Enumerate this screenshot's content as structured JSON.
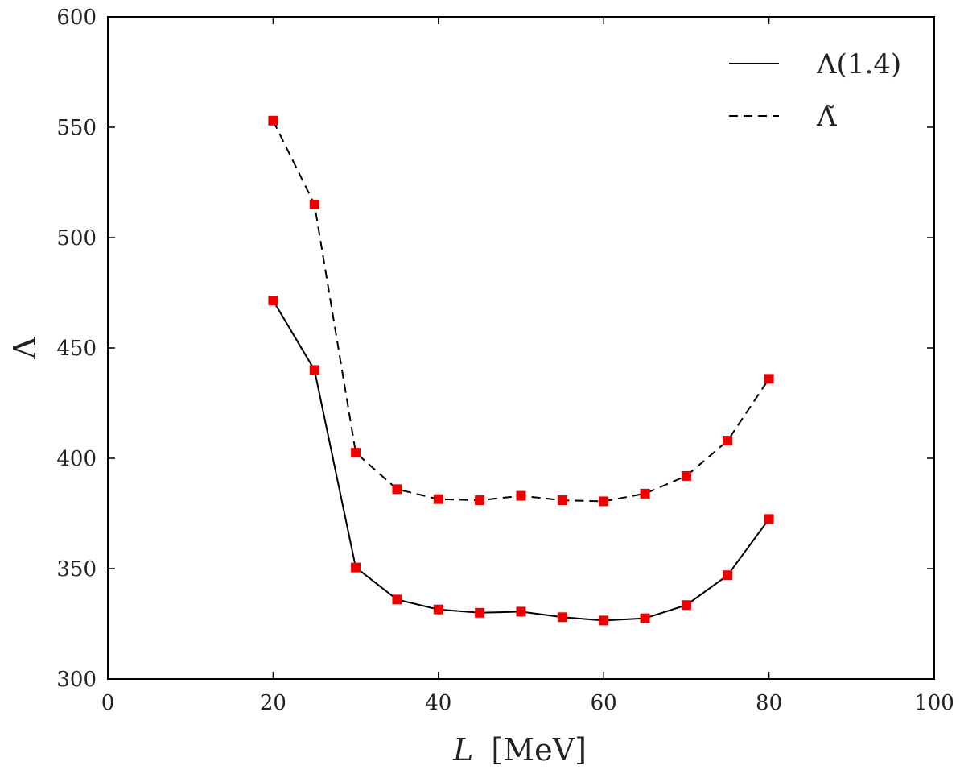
{
  "chart_data": {
    "type": "line",
    "xlabel_main": "L",
    "xlabel_unit": "[MeV]",
    "ylabel": "Λ",
    "xlim": [
      0,
      100
    ],
    "ylim": [
      300,
      600
    ],
    "x_ticks": [
      0,
      20,
      40,
      60,
      80,
      100
    ],
    "y_ticks": [
      300,
      350,
      400,
      450,
      500,
      550,
      600
    ],
    "x_tick_labels": [
      "0",
      "20",
      "40",
      "60",
      "80",
      "100"
    ],
    "y_tick_labels": [
      "300",
      "350",
      "400",
      "450",
      "500",
      "550",
      "600"
    ],
    "legend_position": "top-right",
    "marker_color": "#ee0000",
    "line_color": "#000000",
    "x": [
      20,
      25,
      30,
      35,
      40,
      45,
      50,
      55,
      60,
      65,
      70,
      75,
      80
    ],
    "series": [
      {
        "name": "Λ(1.4)",
        "style": "solid",
        "values": [
          471.5,
          440,
          350.5,
          336,
          331.5,
          330,
          330.5,
          328,
          326.5,
          327.5,
          333.5,
          347,
          372.5
        ]
      },
      {
        "name": "Λ̃",
        "style": "dashed",
        "values": [
          553,
          515,
          402.5,
          386,
          381.5,
          381,
          383,
          381,
          380.5,
          384,
          392,
          408,
          436
        ]
      }
    ]
  }
}
